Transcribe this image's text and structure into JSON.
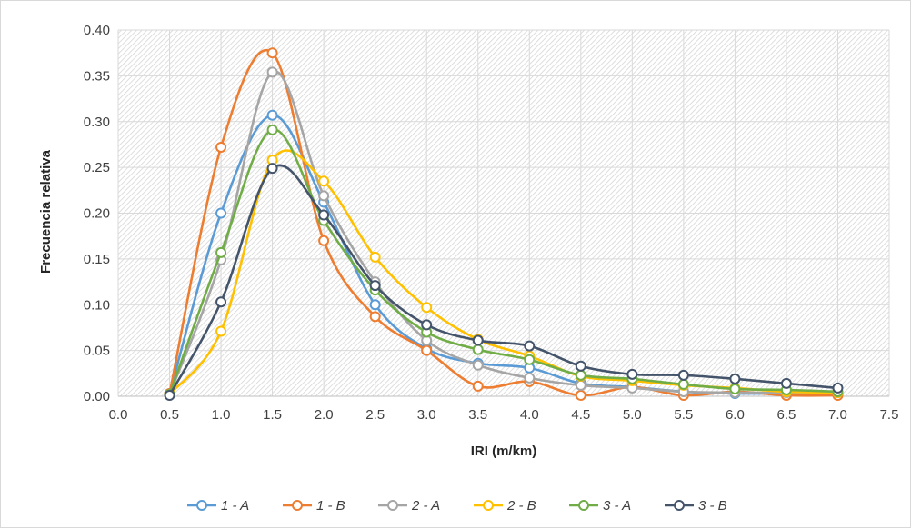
{
  "chart_data": {
    "type": "line",
    "smooth": true,
    "markers": "open-circle",
    "title": "",
    "xlabel": "IRI (m/km)",
    "ylabel": "Frecuencia relativa",
    "xlim": [
      0.0,
      7.5
    ],
    "ylim": [
      0.0,
      0.4
    ],
    "x_ticks": [
      "0.0",
      "0.5",
      "1.0",
      "1.5",
      "2.0",
      "2.5",
      "3.0",
      "3.5",
      "4.0",
      "4.5",
      "5.0",
      "5.5",
      "6.0",
      "6.5",
      "7.0",
      "7.5"
    ],
    "y_ticks": [
      "0.00",
      "0.05",
      "0.10",
      "0.15",
      "0.20",
      "0.25",
      "0.30",
      "0.35",
      "0.40"
    ],
    "grid": true,
    "plot_background": "hatched",
    "legend_position": "bottom",
    "x": [
      0.5,
      1.0,
      1.5,
      2.0,
      2.5,
      3.0,
      3.5,
      4.0,
      4.5,
      5.0,
      5.5,
      6.0,
      6.5,
      7.0
    ],
    "series": [
      {
        "name": "1 - A",
        "color": "#5b9bd5",
        "values": [
          0.003,
          0.2,
          0.307,
          0.212,
          0.1,
          0.052,
          0.036,
          0.031,
          0.014,
          0.01,
          0.005,
          0.003,
          0.003,
          0.002
        ]
      },
      {
        "name": "1 - B",
        "color": "#ed7d31",
        "values": [
          0.003,
          0.272,
          0.375,
          0.17,
          0.087,
          0.05,
          0.011,
          0.016,
          0.001,
          0.01,
          0.001,
          0.005,
          0.001,
          0.001
        ]
      },
      {
        "name": "2 - A",
        "color": "#a5a5a5",
        "values": [
          0.002,
          0.149,
          0.354,
          0.219,
          0.125,
          0.061,
          0.034,
          0.02,
          0.012,
          0.009,
          0.005,
          0.004,
          0.004,
          0.004
        ]
      },
      {
        "name": "2 - B",
        "color": "#ffc000",
        "values": [
          0.002,
          0.071,
          0.258,
          0.235,
          0.152,
          0.097,
          0.062,
          0.044,
          0.022,
          0.017,
          0.012,
          0.009,
          0.005,
          0.004
        ]
      },
      {
        "name": "3 - A",
        "color": "#70ad47",
        "values": [
          0.002,
          0.157,
          0.291,
          0.192,
          0.116,
          0.07,
          0.051,
          0.04,
          0.023,
          0.019,
          0.013,
          0.008,
          0.007,
          0.005
        ]
      },
      {
        "name": "3 - B",
        "color": "#44546a",
        "values": [
          0.001,
          0.103,
          0.249,
          0.198,
          0.121,
          0.078,
          0.061,
          0.055,
          0.033,
          0.024,
          0.023,
          0.019,
          0.014,
          0.009
        ]
      }
    ]
  }
}
